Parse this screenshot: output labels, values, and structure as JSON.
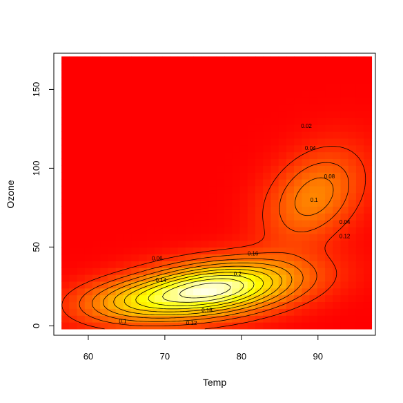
{
  "chart_data": {
    "type": "heatmap",
    "title": "",
    "xlabel": "Temp",
    "ylabel": "Ozone",
    "xlim": [
      55.5,
      97.5
    ],
    "ylim": [
      -6,
      173
    ],
    "x_ticks": [
      60,
      70,
      80,
      90
    ],
    "y_ticks": [
      0,
      50,
      100,
      150
    ],
    "x_tick_labels": [
      "60",
      "70",
      "80",
      "90"
    ],
    "y_tick_labels": [
      "0",
      "50",
      "100",
      "150"
    ],
    "grid": false,
    "legend": "none",
    "heat_range_x": [
      56.5,
      97
    ],
    "heat_range_y": [
      -2,
      171
    ],
    "density_modes": [
      {
        "x": 76.0,
        "y": 23.0,
        "sx": 7.5,
        "sy": 12.0,
        "rho": 0.35,
        "w": 1.0
      },
      {
        "x": 89.5,
        "y": 82.0,
        "sx": 4.2,
        "sy": 20.0,
        "rho": 0.35,
        "w": 0.34
      },
      {
        "x": 65.0,
        "y": 15.0,
        "sx": 5.0,
        "sy": 9.0,
        "rho": 0.1,
        "w": 0.25
      }
    ],
    "peak_density": 0.215,
    "contour_levels": [
      0.02,
      0.04,
      0.06,
      0.08,
      0.1,
      0.12,
      0.14,
      0.16,
      0.18,
      0.2
    ],
    "contour_labels": [
      {
        "text": "0.02",
        "x": 88.5,
        "y": 127
      },
      {
        "text": "0.04",
        "x": 89,
        "y": 113
      },
      {
        "text": "0.08",
        "x": 91.5,
        "y": 95
      },
      {
        "text": "0.1",
        "x": 89.5,
        "y": 80
      },
      {
        "text": "0.04",
        "x": 93.5,
        "y": 66
      },
      {
        "text": "0.12",
        "x": 93.5,
        "y": 57
      },
      {
        "text": "0.06",
        "x": 69,
        "y": 43
      },
      {
        "text": "0.16",
        "x": 81.5,
        "y": 46
      },
      {
        "text": "0.2",
        "x": 79.5,
        "y": 33
      },
      {
        "text": "0.14",
        "x": 69.5,
        "y": 29
      },
      {
        "text": "0.18",
        "x": 75.5,
        "y": 10
      },
      {
        "text": "0.1",
        "x": 64.5,
        "y": 3
      },
      {
        "text": "0.12",
        "x": 73.5,
        "y": 2
      }
    ],
    "colors": {
      "low": "#FF0000",
      "mid": "#FFFF00",
      "high": "#FFFFE6",
      "contour_line": "#000000",
      "frame": "#000000"
    }
  }
}
